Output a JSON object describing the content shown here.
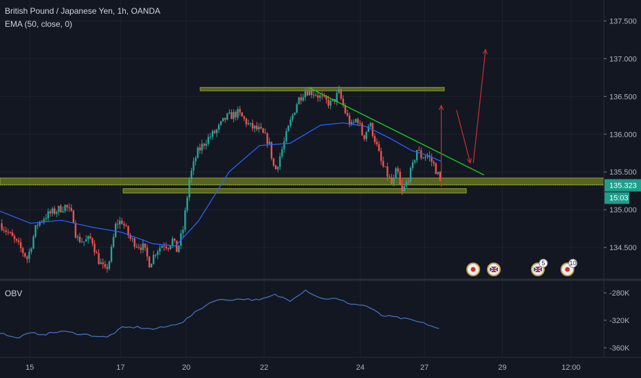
{
  "header": {
    "title": "British Pound / Japanese Yen, 1h, OANDA",
    "ema_label": "EMA (50, close, 0)",
    "obv_label": "OBV"
  },
  "colors": {
    "background": "#131722",
    "up": "#26a69a",
    "down": "#ef5350",
    "ema": "#2962ff",
    "obv": "#4a78c2",
    "zone": "#6f7d21",
    "trendline": "#1fd319",
    "arrow": "#d32f2f",
    "axis_text": "#b2b5be",
    "price_tag_green": "#1e9e8b"
  },
  "price_axis": {
    "ticks": [
      "137.500",
      "137.000",
      "136.500",
      "136.000",
      "135.500",
      "135.000",
      "134.500"
    ],
    "current_price": "135.323",
    "countdown": "15:03"
  },
  "obv_axis": {
    "ticks": [
      "-280K",
      "-320K",
      "-360K"
    ]
  },
  "time_axis": {
    "ticks": [
      "15",
      "17",
      "20",
      "22",
      "24",
      "27",
      "29",
      "12:00"
    ]
  },
  "events": [
    {
      "icon": "japan-flag-icon",
      "badge": ""
    },
    {
      "icon": "uk-flag-icon",
      "badge": ""
    },
    {
      "icon": "uk-flag-icon",
      "badge": "5"
    },
    {
      "icon": "japan-flag-icon",
      "badge": "10"
    }
  ],
  "chart_data": {
    "type": "candlestick",
    "symbol": "GBPJPY",
    "interval": "1h",
    "ylim": [
      134.1,
      137.75
    ],
    "close_path": [
      {
        "t": 0,
        "v": 134.82
      },
      {
        "t": 0.6,
        "v": 134.68
      },
      {
        "t": 1.3,
        "v": 134.5
      },
      {
        "t": 1.8,
        "v": 134.35
      },
      {
        "t": 2.4,
        "v": 134.8
      },
      {
        "t": 3.0,
        "v": 134.92
      },
      {
        "t": 3.6,
        "v": 134.98
      },
      {
        "t": 4.3,
        "v": 135.05
      },
      {
        "t": 4.8,
        "v": 134.9
      },
      {
        "t": 5.0,
        "v": 134.62
      },
      {
        "t": 5.5,
        "v": 134.58
      },
      {
        "t": 6.0,
        "v": 134.62
      },
      {
        "t": 6.4,
        "v": 134.35
      },
      {
        "t": 6.9,
        "v": 134.18
      },
      {
        "t": 7.2,
        "v": 134.35
      },
      {
        "t": 7.6,
        "v": 134.82
      },
      {
        "t": 8.0,
        "v": 134.85
      },
      {
        "t": 8.5,
        "v": 134.62
      },
      {
        "t": 8.9,
        "v": 134.55
      },
      {
        "t": 9.4,
        "v": 134.5
      },
      {
        "t": 9.8,
        "v": 134.28
      },
      {
        "t": 10.2,
        "v": 134.45
      },
      {
        "t": 10.7,
        "v": 134.55
      },
      {
        "t": 11.0,
        "v": 134.52
      },
      {
        "t": 11.3,
        "v": 134.6
      },
      {
        "t": 11.6,
        "v": 134.45
      },
      {
        "t": 12.0,
        "v": 134.75
      },
      {
        "t": 12.4,
        "v": 135.4
      },
      {
        "t": 12.9,
        "v": 135.75
      },
      {
        "t": 13.5,
        "v": 135.92
      },
      {
        "t": 14.2,
        "v": 136.05
      },
      {
        "t": 14.8,
        "v": 136.22
      },
      {
        "t": 15.6,
        "v": 136.28
      },
      {
        "t": 16.4,
        "v": 136.1
      },
      {
        "t": 17.0,
        "v": 136.05
      },
      {
        "t": 17.6,
        "v": 135.9
      },
      {
        "t": 18.0,
        "v": 135.5
      },
      {
        "t": 18.4,
        "v": 135.75
      },
      {
        "t": 19.0,
        "v": 136.15
      },
      {
        "t": 19.5,
        "v": 136.45
      },
      {
        "t": 20.0,
        "v": 136.58
      },
      {
        "t": 20.6,
        "v": 136.55
      },
      {
        "t": 21.2,
        "v": 136.45
      },
      {
        "t": 21.7,
        "v": 136.4
      },
      {
        "t": 22.2,
        "v": 136.55
      },
      {
        "t": 22.6,
        "v": 136.3
      },
      {
        "t": 23.0,
        "v": 136.1
      },
      {
        "t": 23.4,
        "v": 136.22
      },
      {
        "t": 23.8,
        "v": 135.95
      },
      {
        "t": 24.2,
        "v": 136.15
      },
      {
        "t": 24.6,
        "v": 135.9
      },
      {
        "t": 25.0,
        "v": 135.6
      },
      {
        "t": 25.4,
        "v": 135.45
      },
      {
        "t": 25.7,
        "v": 135.32
      },
      {
        "t": 26.0,
        "v": 135.55
      },
      {
        "t": 26.3,
        "v": 135.2
      },
      {
        "t": 26.6,
        "v": 135.35
      },
      {
        "t": 27.0,
        "v": 135.55
      },
      {
        "t": 27.3,
        "v": 135.8
      },
      {
        "t": 27.6,
        "v": 135.7
      },
      {
        "t": 28.0,
        "v": 135.72
      },
      {
        "t": 28.4,
        "v": 135.6
      },
      {
        "t": 28.7,
        "v": 135.45
      },
      {
        "t": 28.9,
        "v": 135.32
      }
    ],
    "ema_50": [
      {
        "t": 0,
        "v": 134.98
      },
      {
        "t": 2,
        "v": 134.82
      },
      {
        "t": 4,
        "v": 134.86
      },
      {
        "t": 6,
        "v": 134.77
      },
      {
        "t": 8,
        "v": 134.7
      },
      {
        "t": 10,
        "v": 134.55
      },
      {
        "t": 11.5,
        "v": 134.52
      },
      {
        "t": 13,
        "v": 134.85
      },
      {
        "t": 15,
        "v": 135.5
      },
      {
        "t": 17,
        "v": 135.85
      },
      {
        "t": 19,
        "v": 135.88
      },
      {
        "t": 21,
        "v": 136.12
      },
      {
        "t": 22.5,
        "v": 136.15
      },
      {
        "t": 24,
        "v": 136.1
      },
      {
        "t": 25.5,
        "v": 135.95
      },
      {
        "t": 27,
        "v": 135.78
      },
      {
        "t": 28,
        "v": 135.72
      },
      {
        "t": 28.9,
        "v": 135.64
      }
    ],
    "obv": [
      {
        "t": 0,
        "v": -338
      },
      {
        "t": 1,
        "v": -346
      },
      {
        "t": 2,
        "v": -339
      },
      {
        "t": 3,
        "v": -340
      },
      {
        "t": 4,
        "v": -336
      },
      {
        "t": 5,
        "v": -339
      },
      {
        "t": 6,
        "v": -342
      },
      {
        "t": 7,
        "v": -345
      },
      {
        "t": 8,
        "v": -331
      },
      {
        "t": 9,
        "v": -330
      },
      {
        "t": 10,
        "v": -333
      },
      {
        "t": 11,
        "v": -329
      },
      {
        "t": 12,
        "v": -322
      },
      {
        "t": 13,
        "v": -305
      },
      {
        "t": 14,
        "v": -291
      },
      {
        "t": 15,
        "v": -290
      },
      {
        "t": 16,
        "v": -289
      },
      {
        "t": 17,
        "v": -291
      },
      {
        "t": 18,
        "v": -283
      },
      {
        "t": 19,
        "v": -291
      },
      {
        "t": 20,
        "v": -276
      },
      {
        "t": 21,
        "v": -288
      },
      {
        "t": 22,
        "v": -289
      },
      {
        "t": 23,
        "v": -296
      },
      {
        "t": 24,
        "v": -299
      },
      {
        "t": 25,
        "v": -313
      },
      {
        "t": 26,
        "v": -316
      },
      {
        "t": 27,
        "v": -320
      },
      {
        "t": 28,
        "v": -326
      },
      {
        "t": 28.9,
        "v": -334
      }
    ],
    "obv_ylim": [
      -366,
      -268
    ],
    "horizontal_zones": [
      {
        "name": "resistance",
        "low": 136.58,
        "high": 136.62
      },
      {
        "name": "support-upper",
        "low": 135.33,
        "high": 135.42
      },
      {
        "name": "support-lower",
        "low": 135.22,
        "high": 135.28
      }
    ],
    "trendline": {
      "from": {
        "t": 20.2,
        "v": 136.62
      },
      "to": {
        "t": 31.7,
        "v": 135.46
      }
    },
    "projection_arrows": [
      {
        "from": {
          "t": 28.9,
          "v": 135.3
        },
        "to": {
          "t": 28.9,
          "v": 136.38
        }
      },
      {
        "from": {
          "t": 29.9,
          "v": 136.32
        },
        "to": {
          "t": 30.8,
          "v": 135.62
        }
      },
      {
        "from": {
          "t": 31.0,
          "v": 135.62
        },
        "to": {
          "t": 31.8,
          "v": 137.12
        }
      }
    ]
  }
}
